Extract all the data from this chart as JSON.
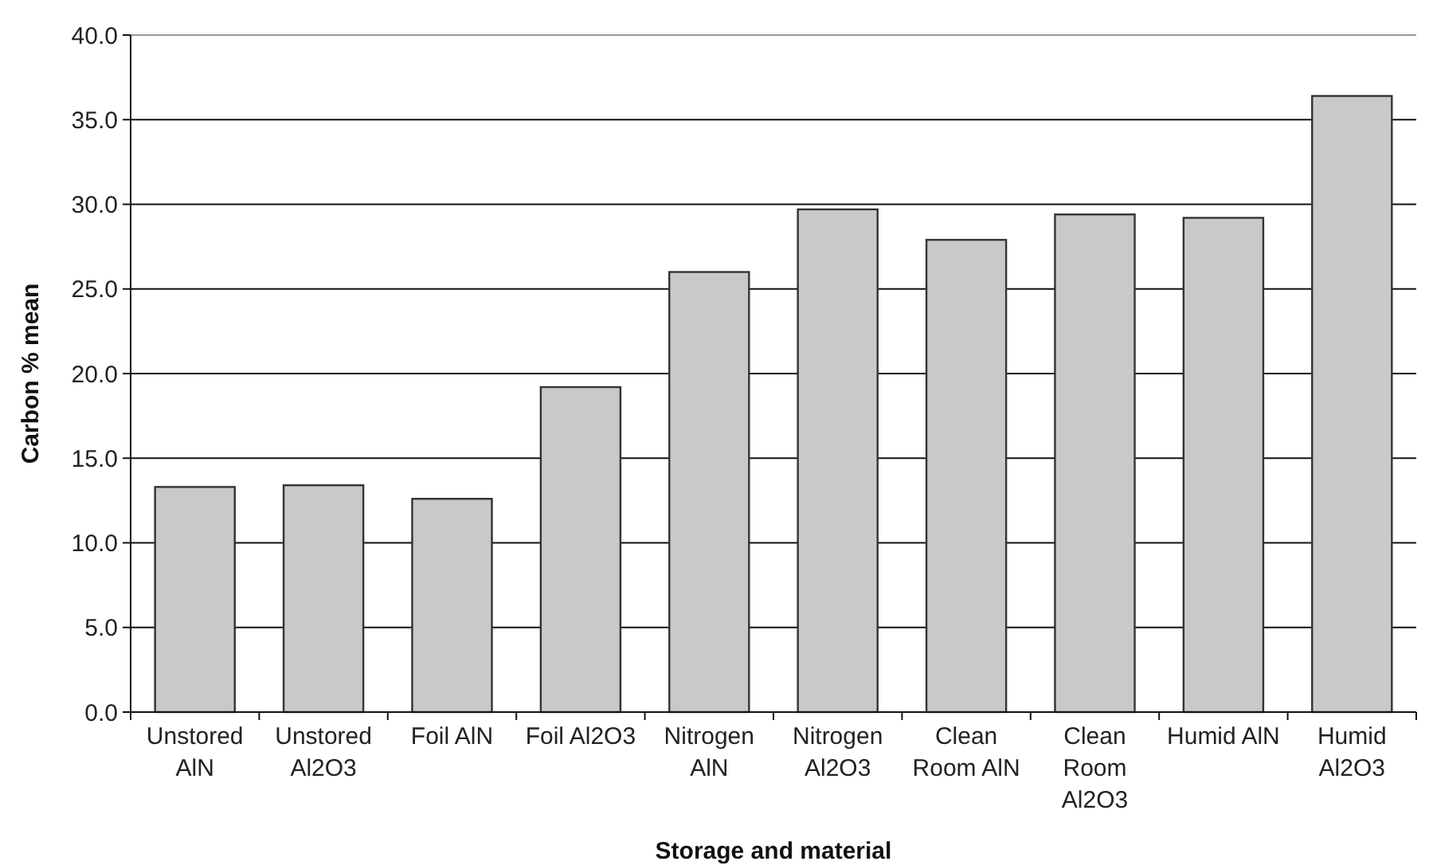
{
  "chart_data": {
    "type": "bar",
    "xlabel": "Storage and material",
    "ylabel": "Carbon % mean",
    "categories": [
      "Unstored AlN",
      "Unstored Al2O3",
      "Foil AlN",
      "Foil Al2O3",
      "Nitrogen AlN",
      "Nitrogen Al2O3",
      "Clean Room AlN",
      "Clean Room Al2O3",
      "Humid AlN",
      "Humid Al2O3"
    ],
    "values": [
      13.3,
      13.4,
      12.6,
      19.2,
      26.0,
      29.7,
      27.9,
      29.4,
      29.2,
      36.4
    ],
    "color": "#c8c9cb",
    "ylim": [
      0,
      40
    ],
    "yticks": [
      {
        "value": 0,
        "label": "0.0"
      },
      {
        "value": 5,
        "label": "5.0"
      },
      {
        "value": 10,
        "label": "10.0"
      },
      {
        "value": 15,
        "label": "15.0"
      },
      {
        "value": 20,
        "label": "20.0"
      },
      {
        "value": 25,
        "label": "25.0"
      },
      {
        "value": 30,
        "label": "30.0"
      },
      {
        "value": 35,
        "label": "35.0"
      },
      {
        "value": 40,
        "label": "40.0"
      }
    ],
    "grid": "y"
  }
}
